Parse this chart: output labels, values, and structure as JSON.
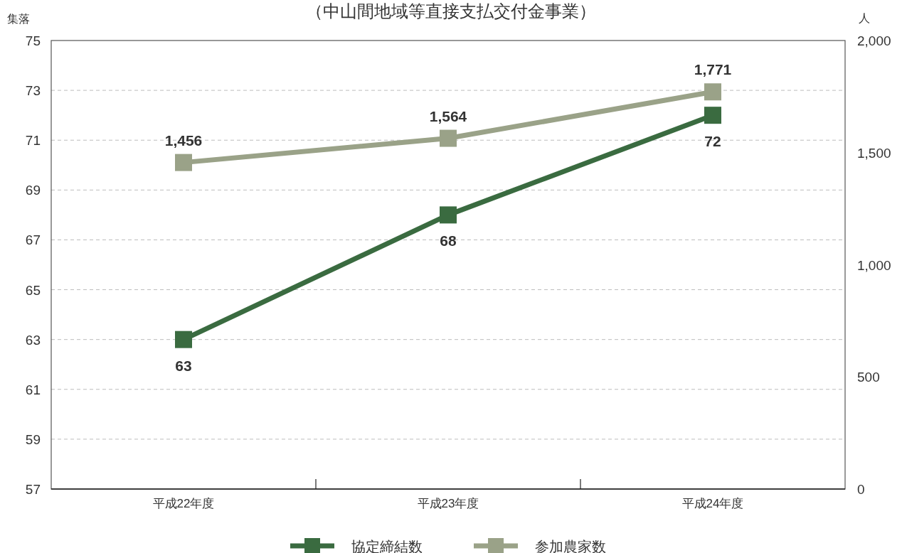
{
  "chart_data": {
    "type": "line",
    "title": "（中山間地域等直接支払交付金事業）",
    "ylabel": "集落",
    "y2label": "人",
    "categories": [
      "平成22年度",
      "平成23年度",
      "平成24年度"
    ],
    "series": [
      {
        "name": "協定締結数",
        "color": "#3a6b40",
        "values": [
          63,
          68,
          72
        ],
        "value_labels": [
          "63",
          "68",
          "72"
        ]
      },
      {
        "name": "参加農家数",
        "color": "#9aa288",
        "axis": "y2",
        "values": [
          1456,
          1564,
          1771
        ],
        "value_labels": [
          "1,456",
          "1,564",
          "1,771"
        ]
      }
    ],
    "ylim": [
      57,
      75
    ],
    "yticks": [
      57,
      59,
      61,
      63,
      65,
      67,
      69,
      71,
      73,
      75
    ],
    "y2lim": [
      0,
      2000
    ],
    "y2ticks": [
      0,
      {
        "value": 500,
        "label": "500"
      },
      {
        "value": 1000,
        "label": "1,000"
      },
      {
        "value": 1500,
        "label": "1,500"
      },
      {
        "value": 2000,
        "label": "2,000"
      }
    ],
    "grid": "y",
    "legend": "bottom",
    "marker": "square",
    "line_style": "solid"
  }
}
